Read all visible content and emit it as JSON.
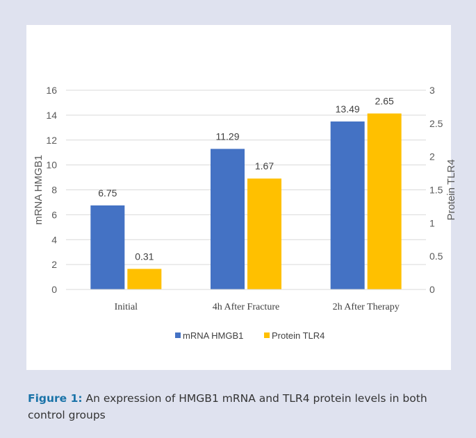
{
  "colors": {
    "background": "#dfe2ef",
    "chart_background": "#ffffff",
    "caption_label": "#1a73a8"
  },
  "caption": {
    "label": "Figure 1:",
    "text": "An expression of HMGB1 mRNA and TLR4 protein levels in both control groups"
  },
  "chart_data": {
    "type": "bar",
    "title": "",
    "categories": [
      "Initial",
      "4h After Fracture",
      "2h After Therapy"
    ],
    "series": [
      {
        "name": "mRNA HMGB1",
        "axis": "left",
        "color": "#4472c4",
        "values": [
          6.75,
          11.29,
          13.49
        ]
      },
      {
        "name": "Protein TLR4",
        "axis": "right",
        "color": "#ffc000",
        "values": [
          0.31,
          1.67,
          2.65
        ]
      }
    ],
    "ylabel": "mRNA HMGB1",
    "y2label": "Protein TLR4",
    "ylim": [
      0,
      16
    ],
    "y2lim": [
      0,
      3
    ],
    "yticks": [
      "0",
      "2",
      "4",
      "6",
      "8",
      "10",
      "12",
      "14",
      "16"
    ],
    "y2ticks": [
      "0",
      "0.5",
      "1",
      "1.5",
      "2",
      "2.5",
      "3"
    ],
    "data_labels": [
      [
        "6.75",
        "11.29",
        "13.49"
      ],
      [
        "0.31",
        "1.67",
        "2.65"
      ]
    ],
    "grid": true,
    "legend_position": "bottom"
  }
}
